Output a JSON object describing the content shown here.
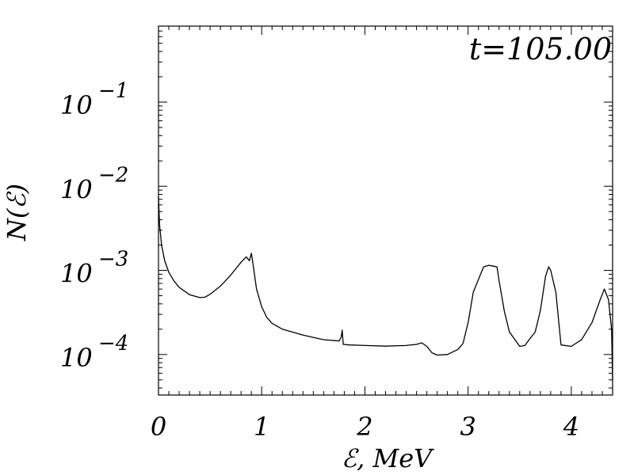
{
  "chart_data": {
    "type": "line",
    "title": "",
    "annotation": "t=105.00",
    "xlabel": "ℰ,  MeV",
    "ylabel": "N(ℰ)",
    "yscale": "log",
    "xlim": [
      0,
      4.4
    ],
    "ylim": [
      3.3e-05,
      0.8
    ],
    "grid": false,
    "xticks": [
      {
        "value": 0,
        "label": "0"
      },
      {
        "value": 1,
        "label": "1"
      },
      {
        "value": 2,
        "label": "2"
      },
      {
        "value": 3,
        "label": "3"
      },
      {
        "value": 4,
        "label": "4"
      }
    ],
    "yticks": [
      {
        "value": 0.1,
        "base": "10",
        "exp": "−1"
      },
      {
        "value": 0.01,
        "base": "10",
        "exp": "−2"
      },
      {
        "value": 0.001,
        "base": "10",
        "exp": "−3"
      },
      {
        "value": 0.0001,
        "base": "10",
        "exp": "−4"
      }
    ],
    "series": [
      {
        "x": [
          0.0,
          0.01,
          0.03,
          0.06,
          0.1,
          0.15,
          0.2,
          0.3,
          0.4,
          0.45,
          0.5,
          0.6,
          0.7,
          0.8,
          0.85,
          0.88,
          0.9,
          0.92,
          0.95,
          1.0,
          1.05,
          1.1,
          1.2,
          1.4,
          1.6,
          1.75,
          1.77,
          1.78,
          1.79,
          1.85,
          2.0,
          2.2,
          2.4,
          2.5,
          2.55,
          2.6,
          2.65,
          2.7,
          2.8,
          2.9,
          2.95,
          3.0,
          3.05,
          3.1,
          3.15,
          3.2,
          3.25,
          3.28,
          3.3,
          3.35,
          3.4,
          3.5,
          3.55,
          3.6,
          3.65,
          3.7,
          3.75,
          3.78,
          3.8,
          3.85,
          3.9,
          4.0,
          4.1,
          4.2,
          4.28,
          4.32,
          4.36,
          4.39,
          4.4
        ],
        "y": [
          0.0075,
          0.0035,
          0.002,
          0.0013,
          0.00095,
          0.00075,
          0.00063,
          0.000515,
          0.000475,
          0.00048,
          0.00052,
          0.00065,
          0.00088,
          0.00125,
          0.00145,
          0.0013,
          0.0016,
          0.0011,
          0.0006,
          0.00037,
          0.000275,
          0.000235,
          0.0002,
          0.00017,
          0.00015,
          0.000145,
          0.00016,
          0.000195,
          0.000132,
          0.00013,
          0.000128,
          0.000126,
          0.000128,
          0.000132,
          0.000138,
          0.000125,
          0.000105,
          9.85e-05,
          0.0001,
          0.000115,
          0.000135,
          0.00024,
          0.00055,
          0.00078,
          0.0011,
          0.00115,
          0.00112,
          0.0011,
          0.00075,
          0.00033,
          0.000185,
          0.000125,
          0.000128,
          0.000155,
          0.000185,
          0.00033,
          0.00085,
          0.0011,
          0.001,
          0.00055,
          0.00013,
          0.000125,
          0.00015,
          0.00024,
          0.00045,
          0.0006,
          0.00045,
          0.0002,
          5e-05
        ]
      }
    ]
  }
}
